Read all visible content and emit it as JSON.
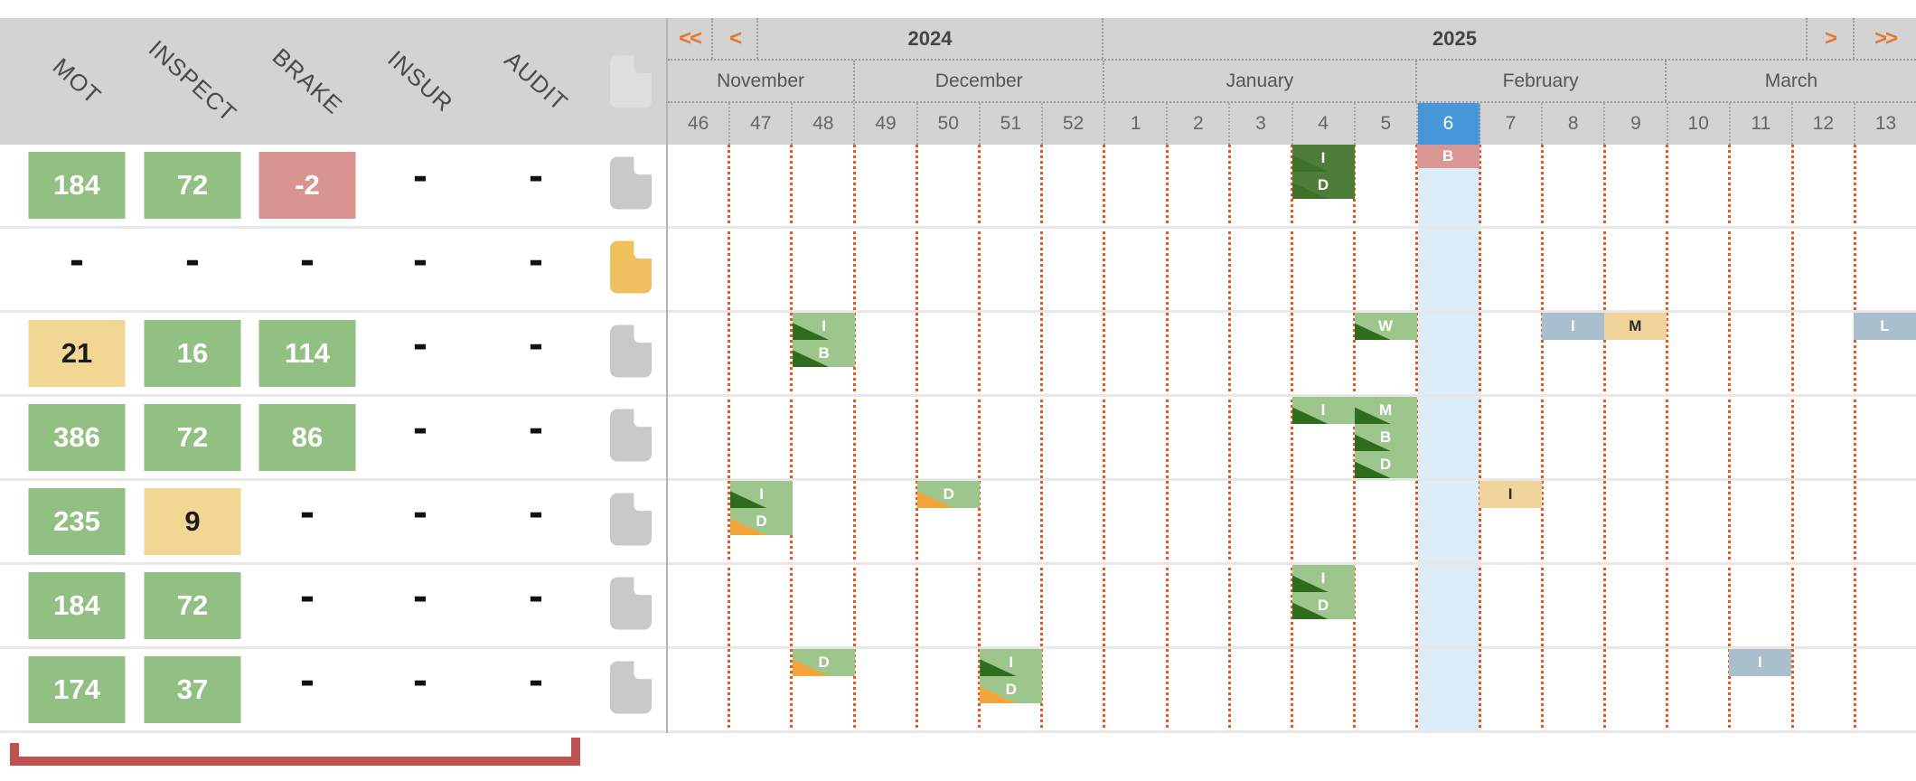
{
  "left_panel": {
    "columns": [
      "MOT",
      "INSPECT",
      "BRAKE",
      "INSUR",
      "AUDIT"
    ],
    "rows": [
      {
        "cells": [
          {
            "text": "184",
            "color": "green"
          },
          {
            "text": "72",
            "color": "green"
          },
          {
            "text": "-2",
            "color": "red"
          },
          {
            "text": "-",
            "color": "none"
          },
          {
            "text": "-",
            "color": "none"
          }
        ],
        "doc": "gray"
      },
      {
        "cells": [
          {
            "text": "-",
            "color": "none"
          },
          {
            "text": "-",
            "color": "none"
          },
          {
            "text": "-",
            "color": "none"
          },
          {
            "text": "-",
            "color": "none"
          },
          {
            "text": "-",
            "color": "none"
          }
        ],
        "doc": "yellow"
      },
      {
        "cells": [
          {
            "text": "21",
            "color": "yellow"
          },
          {
            "text": "16",
            "color": "green"
          },
          {
            "text": "114",
            "color": "green"
          },
          {
            "text": "-",
            "color": "none"
          },
          {
            "text": "-",
            "color": "none"
          }
        ],
        "doc": "gray"
      },
      {
        "cells": [
          {
            "text": "386",
            "color": "green"
          },
          {
            "text": "72",
            "color": "green"
          },
          {
            "text": "86",
            "color": "green"
          },
          {
            "text": "-",
            "color": "none"
          },
          {
            "text": "-",
            "color": "none"
          }
        ],
        "doc": "gray"
      },
      {
        "cells": [
          {
            "text": "235",
            "color": "green"
          },
          {
            "text": "9",
            "color": "yellow"
          },
          {
            "text": "-",
            "color": "none"
          },
          {
            "text": "-",
            "color": "none"
          },
          {
            "text": "-",
            "color": "none"
          }
        ],
        "doc": "gray"
      },
      {
        "cells": [
          {
            "text": "184",
            "color": "green"
          },
          {
            "text": "72",
            "color": "green"
          },
          {
            "text": "-",
            "color": "none"
          },
          {
            "text": "-",
            "color": "none"
          },
          {
            "text": "-",
            "color": "none"
          }
        ],
        "doc": "gray"
      },
      {
        "cells": [
          {
            "text": "174",
            "color": "green"
          },
          {
            "text": "37",
            "color": "green"
          },
          {
            "text": "-",
            "color": "none"
          },
          {
            "text": "-",
            "color": "none"
          },
          {
            "text": "-",
            "color": "none"
          }
        ],
        "doc": "gray"
      }
    ]
  },
  "timeline": {
    "nav": {
      "fast_back": "<<",
      "back": "<",
      "forward": ">",
      "fast_forward": ">>"
    },
    "years": [
      {
        "label": "2024"
      },
      {
        "label": "2025"
      }
    ],
    "months": [
      {
        "label": "November"
      },
      {
        "label": "December"
      },
      {
        "label": "January"
      },
      {
        "label": "February"
      },
      {
        "label": "March"
      }
    ],
    "weeks": [
      46,
      47,
      48,
      49,
      50,
      51,
      52,
      1,
      2,
      3,
      4,
      5,
      6,
      7,
      8,
      9,
      10,
      11,
      12,
      13
    ],
    "current_week": 6,
    "events": [
      {
        "row": 0,
        "week": 4,
        "bars": [
          {
            "label": "I",
            "style": "darkgreen",
            "corner": "dark"
          },
          {
            "label": "D",
            "style": "darkgreen",
            "corner": "dark"
          }
        ]
      },
      {
        "row": 0,
        "week": 6,
        "bars": [
          {
            "label": "B",
            "style": "pink"
          }
        ]
      },
      {
        "row": 2,
        "week": 48,
        "bars": [
          {
            "label": "I",
            "style": "green",
            "corner": "dark"
          },
          {
            "label": "B",
            "style": "green",
            "corner": "dark"
          }
        ]
      },
      {
        "row": 2,
        "week": 5,
        "bars": [
          {
            "label": "W",
            "style": "green",
            "corner": "dark"
          }
        ]
      },
      {
        "row": 2,
        "week": 8,
        "bars": [
          {
            "label": "I",
            "style": "bluegray"
          }
        ]
      },
      {
        "row": 2,
        "week": 9,
        "bars": [
          {
            "label": "M",
            "style": "yellow"
          }
        ]
      },
      {
        "row": 2,
        "week": 13,
        "bars": [
          {
            "label": "L",
            "style": "bluegray"
          }
        ]
      },
      {
        "row": 3,
        "week": 4,
        "bars": [
          {
            "label": "I",
            "style": "green",
            "corner": "dark"
          }
        ]
      },
      {
        "row": 3,
        "week": 5,
        "bars": [
          {
            "label": "M",
            "style": "green",
            "corner": "dark"
          },
          {
            "label": "B",
            "style": "green",
            "corner": "dark"
          },
          {
            "label": "D",
            "style": "green",
            "corner": "dark"
          }
        ]
      },
      {
        "row": 4,
        "week": 47,
        "bars": [
          {
            "label": "I",
            "style": "green",
            "corner": "dark"
          },
          {
            "label": "D",
            "style": "green",
            "corner": "orange"
          }
        ]
      },
      {
        "row": 4,
        "week": 50,
        "bars": [
          {
            "label": "D",
            "style": "green",
            "corner": "orange"
          }
        ]
      },
      {
        "row": 4,
        "week": 7,
        "bars": [
          {
            "label": "I",
            "style": "yellow"
          }
        ]
      },
      {
        "row": 5,
        "week": 4,
        "bars": [
          {
            "label": "I",
            "style": "green",
            "corner": "dark"
          },
          {
            "label": "D",
            "style": "green",
            "corner": "dark"
          }
        ]
      },
      {
        "row": 6,
        "week": 48,
        "bars": [
          {
            "label": "D",
            "style": "green",
            "corner": "orange"
          }
        ]
      },
      {
        "row": 6,
        "week": 51,
        "bars": [
          {
            "label": "I",
            "style": "green",
            "corner": "dark"
          },
          {
            "label": "D",
            "style": "green",
            "corner": "orange"
          }
        ]
      },
      {
        "row": 6,
        "week": 11,
        "bars": [
          {
            "label": "I",
            "style": "bluegray"
          }
        ]
      }
    ]
  },
  "annotation": {
    "type": "underline-bracket"
  },
  "colors": {
    "green": "#92c083",
    "yellow": "#f2d794",
    "red": "#d99391",
    "event_green": "#9dc68d",
    "event_dark_green": "#4e7d3a",
    "event_bluegray": "#a9bfcd",
    "event_yellow": "#f0d49b",
    "event_pink": "#da9795",
    "corner_dark_on_green": "#2f6c1e",
    "corner_dark_on_darkgreen": "#3f7029",
    "corner_orange": "#f3a43b",
    "current_week": "#4697d9",
    "current_week_column": "#dcedf9",
    "nav_orange": "#e8772e",
    "grid_line": "#e2571c",
    "header_bg": "#d3d3d3",
    "bracket": "#bf5250",
    "doc_gray": "#c9c9c9",
    "doc_yellow": "#eec05e"
  }
}
